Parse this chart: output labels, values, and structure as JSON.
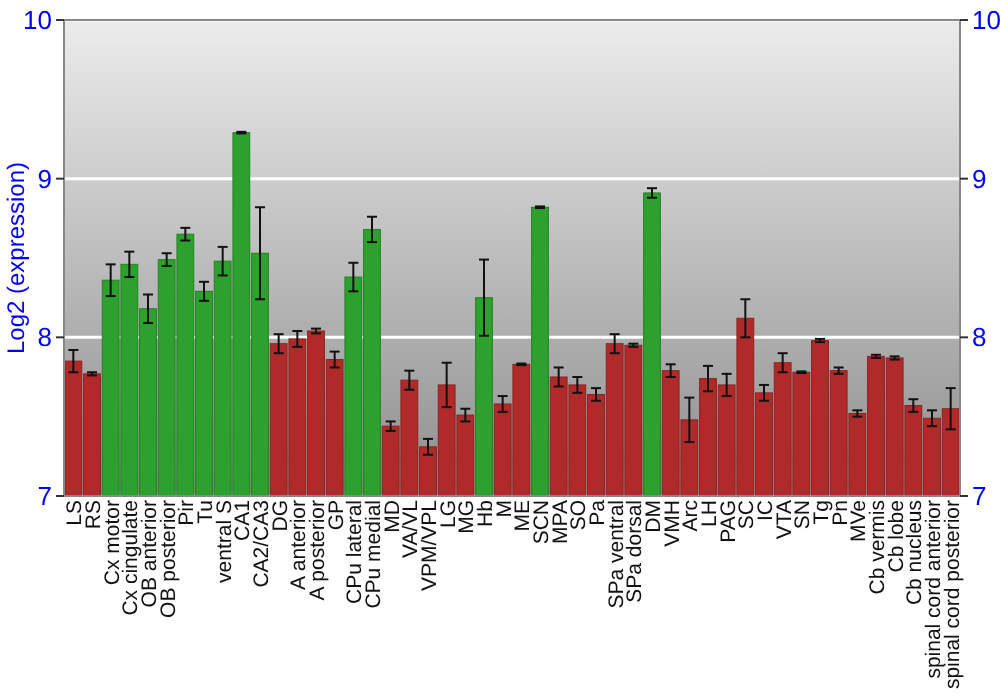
{
  "chart_data": {
    "type": "bar",
    "ylabel": "Log2 (expression)",
    "categories": [
      "LS",
      "RS",
      "Cx motor",
      "Cx cingulate",
      "OB anterior",
      "OB posterior",
      "Pir",
      "Tu",
      "ventral S",
      "CA1",
      "CA2/CA3",
      "DG",
      "A anterior",
      "A posterior",
      "GP",
      "CPu lateral",
      "CPu medial",
      "MD",
      "VA/VL",
      "VPM/VPL",
      "LG",
      "MG",
      "Hb",
      "M",
      "ME",
      "SCN",
      "MPA",
      "SO",
      "Pa",
      "SPa ventral",
      "SPa dorsal",
      "DM",
      "VMH",
      "Arc",
      "LH",
      "PAG",
      "SC",
      "IC",
      "VTA",
      "SN",
      "Tg",
      "Pn",
      "MVe",
      "Cb vermis",
      "Cb lobe",
      "Cb nucleus",
      "spinal cord anterior",
      "spinal cord posterior"
    ],
    "values": [
      7.85,
      7.77,
      8.36,
      8.46,
      8.18,
      8.49,
      8.65,
      8.29,
      8.48,
      9.29,
      8.53,
      7.96,
      7.99,
      8.04,
      7.86,
      8.38,
      8.68,
      7.44,
      7.73,
      7.31,
      7.7,
      7.51,
      8.25,
      7.58,
      7.83,
      8.82,
      7.75,
      7.7,
      7.64,
      7.96,
      7.95,
      8.91,
      7.79,
      7.48,
      7.74,
      7.7,
      8.12,
      7.65,
      7.84,
      7.78,
      7.98,
      7.79,
      7.52,
      7.88,
      7.87,
      7.57,
      7.49,
      7.55
    ],
    "errors": [
      0.07,
      0.01,
      0.1,
      0.08,
      0.09,
      0.04,
      0.04,
      0.06,
      0.09,
      0.005,
      0.29,
      0.06,
      0.05,
      0.015,
      0.05,
      0.09,
      0.08,
      0.03,
      0.06,
      0.05,
      0.14,
      0.04,
      0.24,
      0.05,
      0.005,
      0.005,
      0.06,
      0.05,
      0.04,
      0.06,
      0.01,
      0.03,
      0.04,
      0.14,
      0.08,
      0.07,
      0.12,
      0.05,
      0.06,
      0.005,
      0.01,
      0.02,
      0.02,
      0.01,
      0.01,
      0.04,
      0.05,
      0.13
    ],
    "colors": [
      "#b02a2a",
      "#b02a2a",
      "#2ea02e",
      "#2ea02e",
      "#2ea02e",
      "#2ea02e",
      "#2ea02e",
      "#2ea02e",
      "#2ea02e",
      "#2ea02e",
      "#2ea02e",
      "#b02a2a",
      "#b02a2a",
      "#b02a2a",
      "#b02a2a",
      "#2ea02e",
      "#2ea02e",
      "#b02a2a",
      "#b02a2a",
      "#b02a2a",
      "#b02a2a",
      "#b02a2a",
      "#2ea02e",
      "#b02a2a",
      "#b02a2a",
      "#2ea02e",
      "#b02a2a",
      "#b02a2a",
      "#b02a2a",
      "#b02a2a",
      "#b02a2a",
      "#2ea02e",
      "#b02a2a",
      "#b02a2a",
      "#b02a2a",
      "#b02a2a",
      "#b02a2a",
      "#b02a2a",
      "#b02a2a",
      "#b02a2a",
      "#b02a2a",
      "#b02a2a",
      "#b02a2a",
      "#b02a2a",
      "#b02a2a",
      "#b02a2a",
      "#b02a2a",
      "#b02a2a"
    ],
    "ylim": [
      7,
      10
    ],
    "yticks": [
      7,
      8,
      9,
      10
    ],
    "y2lim": [
      7,
      10
    ],
    "y2ticks": [
      7,
      8,
      9,
      10
    ],
    "grid": "y"
  }
}
